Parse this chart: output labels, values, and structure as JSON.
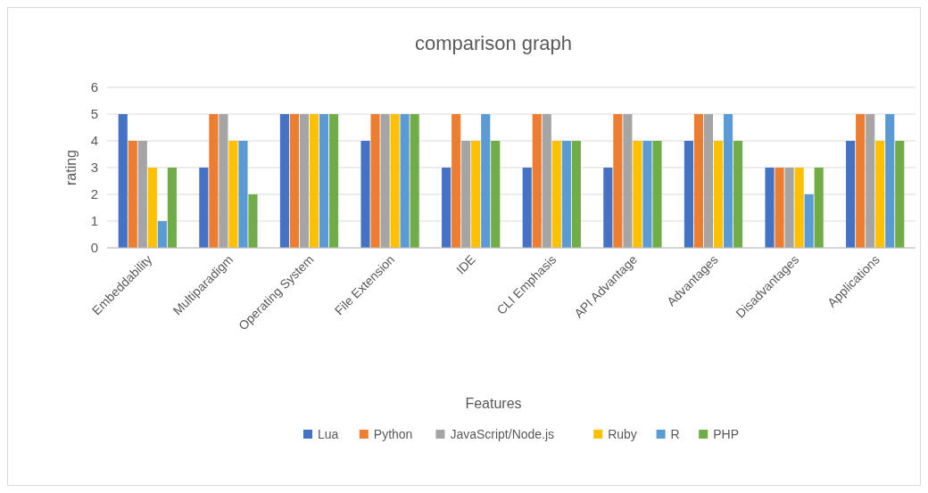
{
  "chart_data": {
    "type": "bar",
    "title": "comparison graph",
    "xlabel": "Features",
    "ylabel": "rating",
    "categories": [
      "Embeddability",
      "Multiparadigm",
      "Operating System",
      "File Extension",
      "IDE",
      "CLI Emphasis",
      "API Advantage",
      "Advantages",
      "Disadvantages",
      "Applications"
    ],
    "series": [
      {
        "name": "Lua",
        "color": "#4472c4",
        "values": [
          5,
          3,
          5,
          4,
          3,
          3,
          3,
          4,
          3,
          4
        ]
      },
      {
        "name": "Python",
        "color": "#ed7d31",
        "values": [
          4,
          5,
          5,
          5,
          5,
          5,
          5,
          5,
          3,
          5
        ]
      },
      {
        "name": "JavaScript/Node.js",
        "color": "#a5a5a5",
        "values": [
          4,
          5,
          5,
          5,
          4,
          5,
          5,
          5,
          3,
          5
        ]
      },
      {
        "name": "Ruby",
        "color": "#ffc000",
        "values": [
          3,
          4,
          5,
          5,
          4,
          4,
          4,
          4,
          3,
          4
        ]
      },
      {
        "name": "R",
        "color": "#5b9bd5",
        "values": [
          1,
          4,
          5,
          5,
          5,
          4,
          4,
          5,
          2,
          5
        ]
      },
      {
        "name": "PHP",
        "color": "#70ad47",
        "values": [
          3,
          2,
          5,
          5,
          4,
          4,
          4,
          4,
          3,
          4
        ]
      }
    ],
    "ylim": [
      0,
      6
    ],
    "yticks": [
      0,
      1,
      2,
      3,
      4,
      5,
      6
    ],
    "grid": "y",
    "legend": "bottom"
  }
}
